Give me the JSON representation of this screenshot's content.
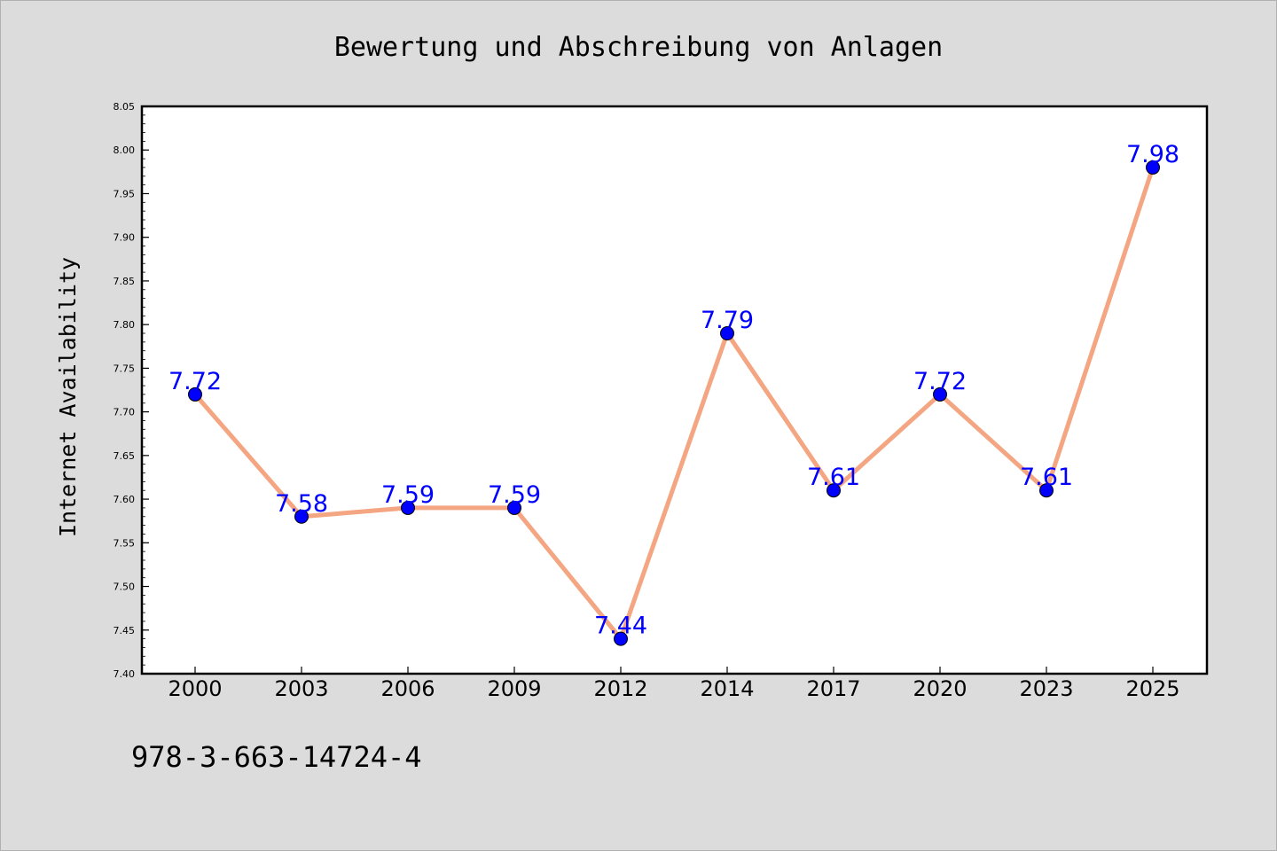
{
  "chart_data": {
    "type": "line",
    "title": "Bewertung und Abschreibung von Anlagen",
    "ylabel": "Internet Availability",
    "xlabel": "",
    "categories": [
      "2000",
      "2003",
      "2006",
      "2009",
      "2012",
      "2014",
      "2017",
      "2020",
      "2023",
      "2025"
    ],
    "values": [
      7.72,
      7.58,
      7.59,
      7.59,
      7.44,
      7.79,
      7.61,
      7.72,
      7.61,
      7.98
    ],
    "data_labels": [
      "7.72",
      "7.58",
      "7.59",
      "7.59",
      "7.44",
      "7.79",
      "7.61",
      "7.72",
      "7.61",
      "7.98"
    ],
    "ylim": [
      7.4,
      8.05
    ],
    "yticks": [
      "7.40",
      "7.45",
      "7.50",
      "7.55",
      "7.60",
      "7.65",
      "7.70",
      "7.75",
      "7.80",
      "7.85",
      "7.90",
      "7.95",
      "8.00",
      "8.05"
    ],
    "grid": false,
    "legend": "none",
    "line_color": "#f4a582",
    "marker_color": "#0000ff",
    "label_color": "#0000ff",
    "background_color": "#dcdcdc",
    "plot_background": "#ffffff"
  },
  "annotation": "978-3-663-14724-4"
}
